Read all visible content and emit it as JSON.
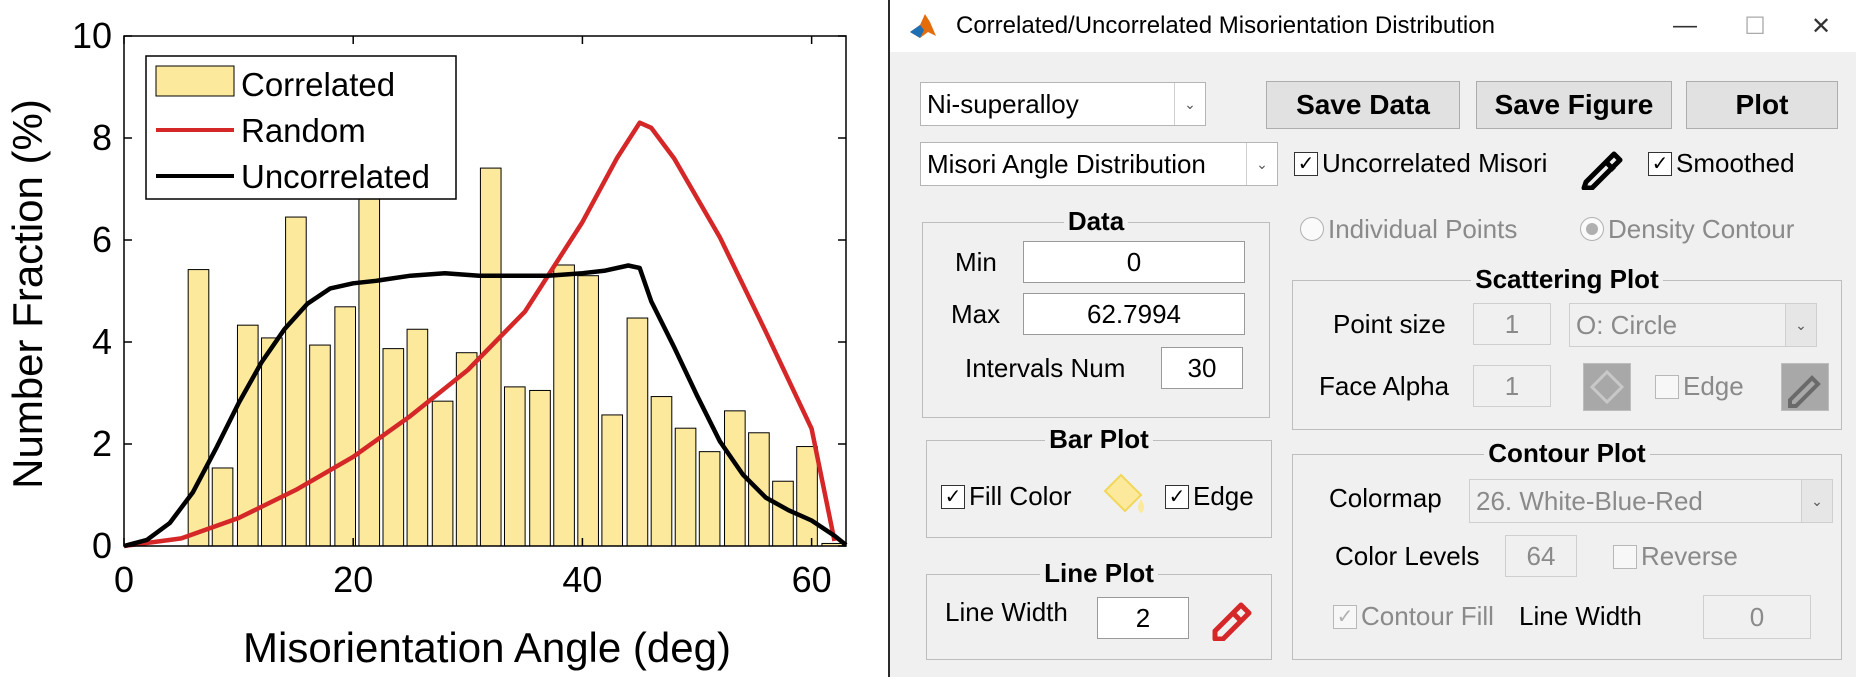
{
  "chart_data": {
    "type": "bar",
    "xlabel": "Misorientation Angle (deg)",
    "ylabel": "Number Fraction (%)",
    "xlim": [
      0,
      63
    ],
    "ylim": [
      0,
      10
    ],
    "xticks": [
      "0",
      "20",
      "40",
      "60"
    ],
    "yticks": [
      "0",
      "2",
      "4",
      "6",
      "8",
      "10"
    ],
    "legend_position": "top-left",
    "bar_width": 1.8,
    "bars": {
      "name": "Correlated",
      "color": "#fce99c",
      "x": [
        6.5,
        8.6,
        10.8,
        12.9,
        15.0,
        17.1,
        19.3,
        21.4,
        23.5,
        25.6,
        27.8,
        29.9,
        32.0,
        34.1,
        36.3,
        38.4,
        40.5,
        42.6,
        44.8,
        46.9,
        49.0,
        51.1,
        53.3,
        55.4,
        57.5,
        59.6,
        61.8
      ],
      "values": [
        5.42,
        1.53,
        4.33,
        4.08,
        6.45,
        3.94,
        4.69,
        6.82,
        3.87,
        4.25,
        2.84,
        3.79,
        7.41,
        3.12,
        3.05,
        5.51,
        5.3,
        2.57,
        4.47,
        2.93,
        2.31,
        1.85,
        2.65,
        2.22,
        1.27,
        1.95,
        0.05
      ]
    },
    "series": [
      {
        "name": "Random",
        "color": "#d62728",
        "x": [
          0,
          5,
          10,
          15,
          20,
          25,
          30,
          35,
          40,
          43,
          45,
          46,
          48,
          52,
          56,
          60,
          62
        ],
        "values": [
          0,
          0.15,
          0.55,
          1.1,
          1.75,
          2.55,
          3.45,
          4.6,
          6.35,
          7.6,
          8.3,
          8.2,
          7.6,
          6.05,
          4.2,
          2.3,
          0.1
        ]
      },
      {
        "name": "Uncorrelated",
        "color": "#000000",
        "x": [
          0,
          2,
          4,
          6,
          8,
          10,
          12,
          14,
          16,
          18,
          20,
          22,
          25,
          28,
          31,
          34,
          37,
          40,
          42,
          44,
          45,
          46,
          48,
          50,
          52,
          54,
          56,
          58,
          60,
          62,
          63
        ],
        "values": [
          0,
          0.12,
          0.45,
          1.05,
          1.9,
          2.8,
          3.6,
          4.25,
          4.75,
          5.05,
          5.15,
          5.2,
          5.3,
          5.35,
          5.3,
          5.3,
          5.3,
          5.35,
          5.4,
          5.5,
          5.45,
          4.8,
          3.9,
          2.95,
          2.05,
          1.4,
          0.95,
          0.7,
          0.5,
          0.2,
          0.02
        ]
      }
    ]
  },
  "window": {
    "title": "Correlated/Uncorrelated Misorientation Distribution",
    "minimize": "—",
    "maximize": "☐",
    "close": "✕"
  },
  "toolbar": {
    "material": "Ni-superalloy",
    "mode": "Misori Angle Distribution",
    "save_data": "Save Data",
    "save_figure": "Save Figure",
    "plot": "Plot",
    "uncorrelated_label": "Uncorrelated Misori",
    "uncorrelated_checked": true,
    "smoothed_label": "Smoothed",
    "smoothed_checked": true
  },
  "data_group": {
    "title": "Data",
    "min_label": "Min",
    "min_value": "0",
    "max_label": "Max",
    "max_value": "62.7994",
    "intervals_label": "Intervals Num",
    "intervals_value": "30"
  },
  "bar_group": {
    "title": "Bar Plot",
    "fill_label": "Fill Color",
    "fill_checked": true,
    "fill_color": "#fce99c",
    "edge_label": "Edge",
    "edge_checked": true
  },
  "line_group": {
    "title": "Line Plot",
    "width_label": "Line Width",
    "width_value": "2",
    "pen_color": "#d62728"
  },
  "display_mode": {
    "individual_label": "Individual Points",
    "density_label": "Density Contour",
    "selected": "Density Contour"
  },
  "scatter_group": {
    "title": "Scattering Plot",
    "point_size_label": "Point size",
    "point_size_value": "1",
    "marker": "O: Circle",
    "face_alpha_label": "Face Alpha",
    "face_alpha_value": "1",
    "edge_label": "Edge"
  },
  "contour_group": {
    "title": "Contour Plot",
    "colormap_label": "Colormap",
    "colormap_value": "26. White-Blue-Red",
    "levels_label": "Color Levels",
    "levels_value": "64",
    "reverse_label": "Reverse",
    "fill_label": "Contour Fill",
    "fill_checked": true,
    "width_label": "Line Width",
    "width_value": "0"
  }
}
